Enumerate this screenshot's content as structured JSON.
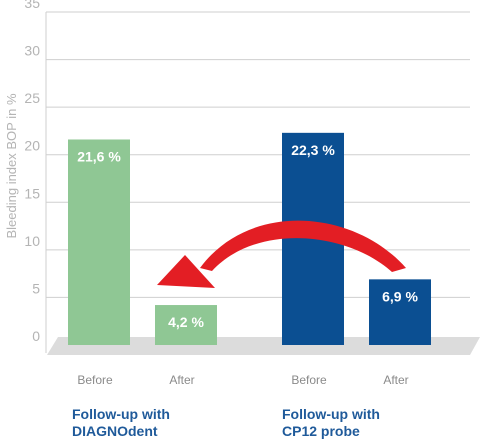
{
  "chart_data": {
    "type": "bar",
    "ylabel": "Bleeding index BOP in %",
    "ylim": [
      0,
      35
    ],
    "yticks": [
      "0",
      "5",
      "10",
      "15",
      "20",
      "25",
      "30",
      "35"
    ],
    "grid": true,
    "categories": [
      "Before",
      "After",
      "Before",
      "After"
    ],
    "values": [
      21.6,
      4.2,
      22.3,
      6.9
    ],
    "value_labels": [
      "21,6 %",
      "4,2 %",
      "22,3 %",
      "6,9 %"
    ],
    "bar_colors": [
      "#8fc794",
      "#8fc794",
      "#0b4f92",
      "#0b4f92"
    ],
    "groups": [
      {
        "name_line1": "Follow-up with",
        "name_line2": "DIAGNOdent"
      },
      {
        "name_line1": "Follow-up with",
        "name_line2": "CP12 probe"
      }
    ],
    "arrow_color": "#e31e24"
  }
}
